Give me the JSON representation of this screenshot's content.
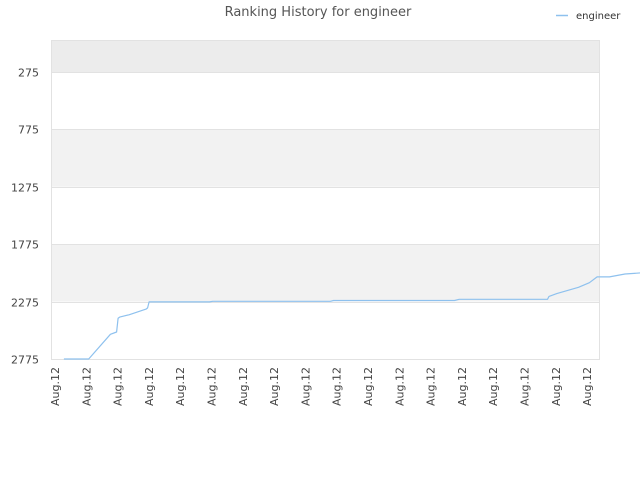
{
  "chart_data": {
    "type": "line",
    "title": "Ranking History for engineer",
    "xlabel": "",
    "ylabel": "",
    "y_inverted": true,
    "ylim": [
      2775,
      0
    ],
    "y_ticks": [
      275,
      775,
      1275,
      1775,
      2275,
      2775
    ],
    "y_tick_labels": [
      "275",
      "775",
      "1275",
      "1775",
      "2275",
      "2775"
    ],
    "x_tick_labels": [
      "Aug.12",
      "Aug.12",
      "Aug.12",
      "Aug.12",
      "Aug.12",
      "Aug.12",
      "Aug.12",
      "Aug.12",
      "Aug.12",
      "Aug.12",
      "Aug.12",
      "Aug.12",
      "Aug.12",
      "Aug.12",
      "Aug.12",
      "Aug.12",
      "Aug.12",
      "Aug.12"
    ],
    "band_colors": [
      "#ececec",
      "#ffffff",
      "#f2f2f2"
    ],
    "grid": true,
    "legend_position": "top-right",
    "series": [
      {
        "name": "engineer",
        "color": "#8ec1ee",
        "x": [
          0.4,
          1.2,
          1.9,
          2.1,
          2.15,
          2.2,
          2.5,
          3.05,
          3.1,
          3.15,
          4.0,
          5.1,
          5.2,
          7.0,
          9.0,
          9.1,
          11.0,
          13.0,
          13.15,
          15.0,
          16.0,
          16.05,
          16.3,
          17.0,
          17.35,
          17.6,
          18.0,
          18.5,
          19.0,
          19.5,
          20.0,
          20.5,
          21.0,
          21.8
        ],
        "y": [
          2775,
          2775,
          2560,
          2540,
          2420,
          2410,
          2390,
          2340,
          2330,
          2278,
          2278,
          2278,
          2272,
          2272,
          2272,
          2265,
          2265,
          2265,
          2255,
          2255,
          2255,
          2230,
          2205,
          2150,
          2110,
          2060,
          2060,
          2035,
          2025,
          2005,
          2000,
          1995,
          1990,
          1985
        ]
      }
    ]
  }
}
